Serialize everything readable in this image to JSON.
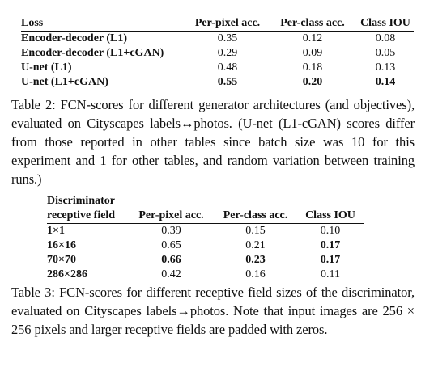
{
  "table2": {
    "headers": [
      "Loss",
      "Per-pixel acc.",
      "Per-class acc.",
      "Class IOU"
    ],
    "rows": [
      {
        "label": "Encoder-decoder (L1)",
        "values": [
          "0.35",
          "0.12",
          "0.08"
        ]
      },
      {
        "label": "Encoder-decoder (L1+cGAN)",
        "values": [
          "0.29",
          "0.09",
          "0.05"
        ]
      },
      {
        "label": "U-net (L1)",
        "values": [
          "0.48",
          "0.18",
          "0.13"
        ]
      },
      {
        "label": "U-net (L1+cGAN)",
        "values": [
          "0.55",
          "0.20",
          "0.14"
        ]
      }
    ],
    "caption": {
      "label": "Table 2:",
      "text": "FCN-scores for different generator architectures (and objectives), evaluated on Cityscapes labels↔photos. (U-net (L1-cGAN) scores differ from those reported in other tables since batch size was 10 for this experiment and 1 for other tables, and random variation between training runs.)"
    }
  },
  "table3": {
    "headers": [
      "Discriminator",
      "receptive field",
      "Per-pixel acc.",
      "Per-class acc.",
      "Class IOU"
    ],
    "rows": [
      {
        "label": "1×1",
        "values": [
          "0.39",
          "0.15",
          "0.10"
        ]
      },
      {
        "label": "16×16",
        "values": [
          "0.65",
          "0.21",
          "0.17"
        ]
      },
      {
        "label": "70×70",
        "values": [
          "0.66",
          "0.23",
          "0.17"
        ]
      },
      {
        "label": "286×286",
        "values": [
          "0.42",
          "0.16",
          "0.11"
        ]
      }
    ],
    "caption": {
      "label": "Table 3:",
      "text": "FCN-scores for different receptive field sizes of the discriminator, evaluated on Cityscapes labels→photos. Note that input images are 256 × 256 pixels and larger receptive fields are padded with zeros."
    }
  }
}
